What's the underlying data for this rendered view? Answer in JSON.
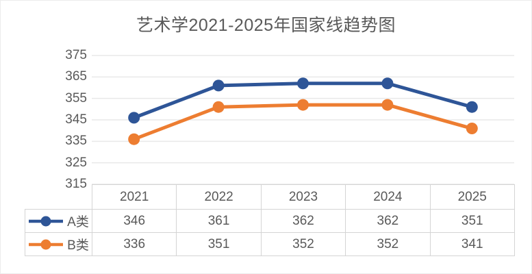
{
  "title": "艺术学2021-2025年国家线趋势图",
  "colors": {
    "text": "#595959",
    "gridline": "#e9e9e9",
    "table_border": "#d4d4d4",
    "background": "#ffffff",
    "series_a": "#2E5597",
    "series_b": "#ED7D31"
  },
  "chart_data": {
    "type": "line",
    "title": "艺术学2021-2025年国家线趋势图",
    "categories": [
      "2021",
      "2022",
      "2023",
      "2024",
      "2025"
    ],
    "series": [
      {
        "name": "A类",
        "color": "#2E5597",
        "values": [
          346,
          361,
          362,
          362,
          351
        ]
      },
      {
        "name": "B类",
        "color": "#ED7D31",
        "values": [
          336,
          351,
          352,
          352,
          341
        ]
      }
    ],
    "xlabel": "",
    "ylabel": "",
    "ylim": [
      315,
      375
    ],
    "y_ticks": [
      375,
      365,
      355,
      345,
      335,
      325,
      315
    ],
    "grid": "horizontal",
    "legend_position": "data-table-left",
    "marker": "circle"
  }
}
